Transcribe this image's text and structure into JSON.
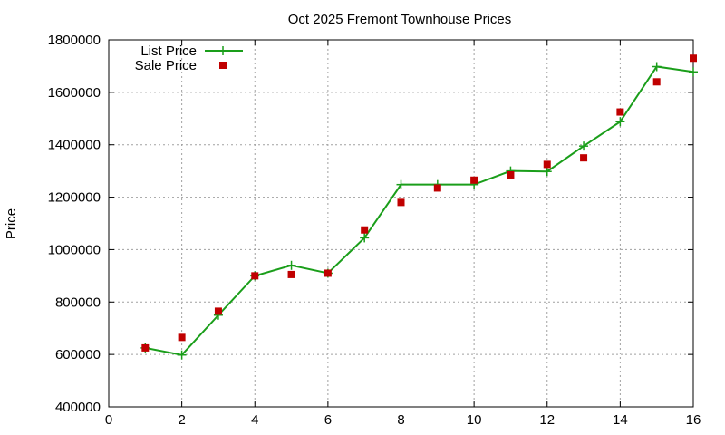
{
  "chart_data": {
    "type": "line",
    "title": "Oct 2025 Fremont Townhouse Prices",
    "xlabel": "",
    "ylabel": "Price",
    "xlim": [
      0,
      16
    ],
    "ylim": [
      400000,
      1800000
    ],
    "xticks": [
      0,
      2,
      4,
      6,
      8,
      10,
      12,
      14,
      16
    ],
    "yticks": [
      400000,
      600000,
      800000,
      1000000,
      1200000,
      1400000,
      1600000,
      1800000
    ],
    "grid": true,
    "legend": "top-left",
    "series": [
      {
        "name": "List Price",
        "style": "line+plus",
        "color": "#1a9e1a",
        "x": [
          1,
          2,
          3,
          4,
          5,
          6,
          7,
          8,
          9,
          10,
          11,
          12,
          13,
          14,
          15,
          16
        ],
        "y": [
          625000,
          598000,
          750000,
          900000,
          940000,
          910000,
          1045000,
          1248000,
          1248000,
          1248000,
          1300000,
          1298000,
          1395000,
          1488000,
          1698000,
          1678000
        ]
      },
      {
        "name": "Sale Price",
        "style": "square",
        "color": "#c00000",
        "x": [
          1,
          2,
          3,
          4,
          5,
          6,
          7,
          8,
          9,
          10,
          11,
          12,
          13,
          14,
          15,
          16
        ],
        "y": [
          625000,
          665000,
          765000,
          900000,
          905000,
          910000,
          1075000,
          1180000,
          1235000,
          1265000,
          1285000,
          1325000,
          1350000,
          1525000,
          1640000,
          1730000
        ]
      }
    ]
  }
}
